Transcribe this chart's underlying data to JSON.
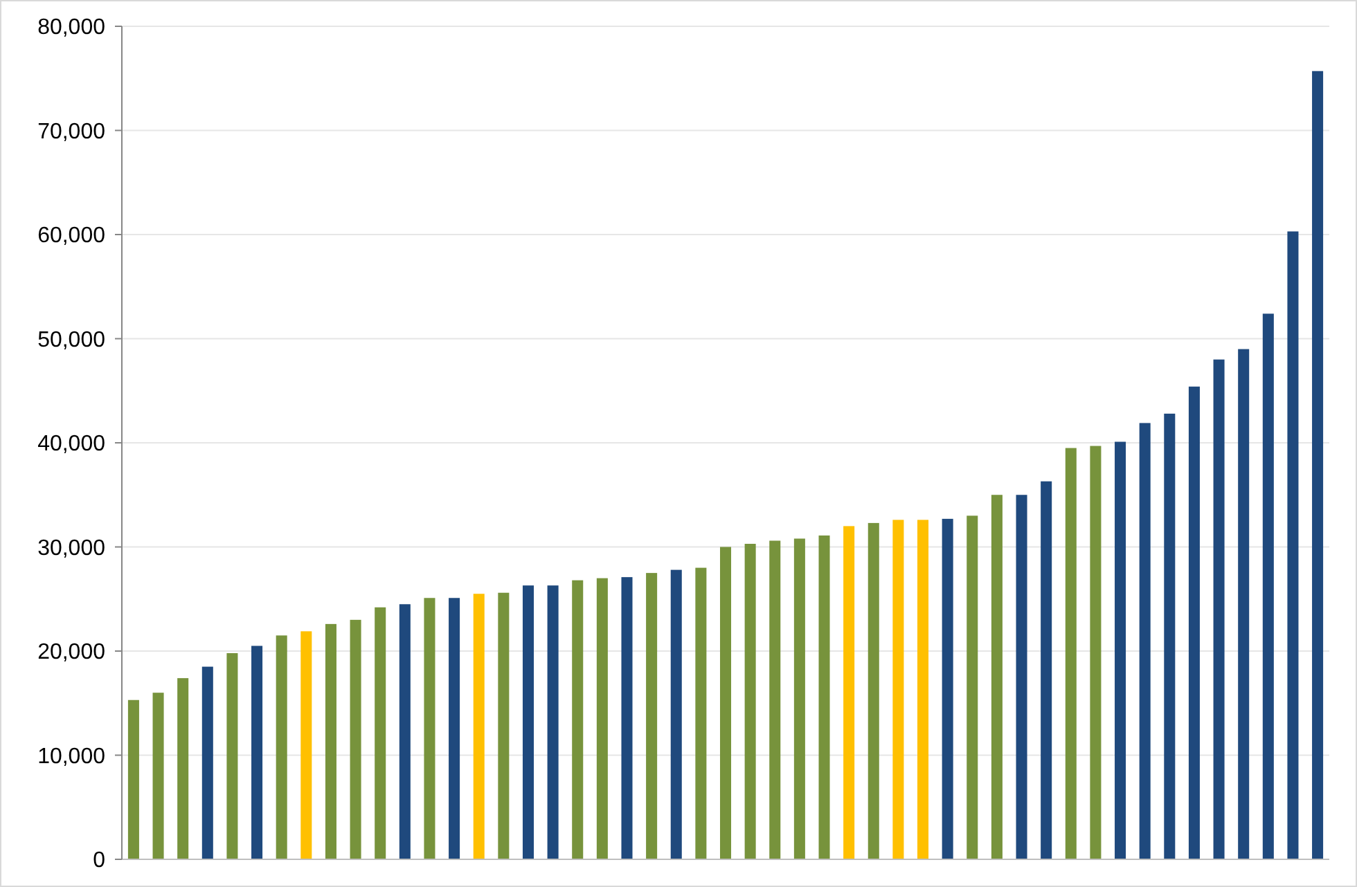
{
  "chart_data": {
    "type": "bar",
    "categories": [
      null,
      null,
      null,
      null,
      null,
      null,
      null,
      null,
      null,
      null,
      null,
      null,
      null,
      null,
      null,
      null,
      null,
      null,
      null,
      null,
      null,
      null,
      null,
      null,
      null,
      null,
      null,
      null,
      null,
      null,
      null,
      null,
      null,
      null,
      null,
      null,
      null,
      null,
      null,
      null,
      null,
      null,
      null,
      null,
      null,
      null,
      null,
      null,
      null
    ],
    "values": [
      15300,
      16000,
      17400,
      18500,
      19800,
      20500,
      21500,
      21900,
      22600,
      23000,
      24200,
      24500,
      25100,
      25100,
      25500,
      25600,
      26300,
      26300,
      26800,
      27000,
      27100,
      27500,
      27800,
      28000,
      30000,
      30300,
      30600,
      30800,
      31100,
      32000,
      32300,
      32600,
      32600,
      32700,
      33000,
      35000,
      35000,
      36300,
      39500,
      39700,
      40100,
      41900,
      42800,
      45400,
      48000,
      49000,
      52400,
      60300,
      75700
    ],
    "colors": [
      "#77933c",
      "#77933c",
      "#77933c",
      "#1f497d",
      "#77933c",
      "#1f497d",
      "#77933c",
      "#ffc000",
      "#77933c",
      "#77933c",
      "#77933c",
      "#1f497d",
      "#77933c",
      "#1f497d",
      "#ffc000",
      "#77933c",
      "#1f497d",
      "#1f497d",
      "#77933c",
      "#77933c",
      "#1f497d",
      "#77933c",
      "#1f497d",
      "#77933c",
      "#77933c",
      "#77933c",
      "#77933c",
      "#77933c",
      "#77933c",
      "#ffc000",
      "#77933c",
      "#ffc000",
      "#ffc000",
      "#1f497d",
      "#77933c",
      "#77933c",
      "#1f497d",
      "#1f497d",
      "#77933c",
      "#77933c",
      "#1f497d",
      "#1f497d",
      "#1f497d",
      "#1f497d",
      "#1f497d",
      "#1f497d",
      "#1f497d",
      "#1f497d",
      "#1f497d"
    ],
    "ylim": [
      0,
      80000
    ],
    "yticks": [
      {
        "value": 0,
        "label": "0"
      },
      {
        "value": 10000,
        "label": "10,000"
      },
      {
        "value": 20000,
        "label": "20,000"
      },
      {
        "value": 30000,
        "label": "30,000"
      },
      {
        "value": 40000,
        "label": "40,000"
      },
      {
        "value": 50000,
        "label": "50,000"
      },
      {
        "value": 60000,
        "label": "60,000"
      },
      {
        "value": 70000,
        "label": "70,000"
      },
      {
        "value": 80000,
        "label": "80,000"
      }
    ],
    "grid": "y"
  }
}
